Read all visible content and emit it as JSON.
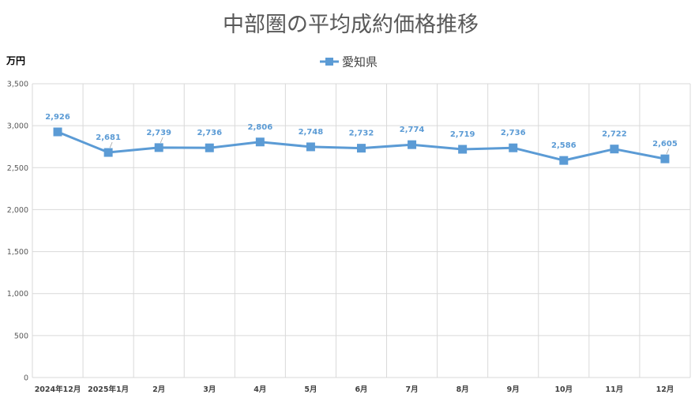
{
  "chart_data": {
    "type": "line",
    "title": "中部圏の平均成約価格推移",
    "ylabel": "万円",
    "xlabel": "",
    "ylim": [
      0,
      3500
    ],
    "yticks": [
      0,
      500,
      1000,
      1500,
      2000,
      2500,
      3000,
      3500
    ],
    "ytick_labels": [
      "0",
      "500",
      "1,000",
      "1,500",
      "2,000",
      "2,500",
      "3,000",
      "3,500"
    ],
    "categories": [
      "2024年12月",
      "2025年1月",
      "2月",
      "3月",
      "4月",
      "5月",
      "6月",
      "7月",
      "8月",
      "9月",
      "10月",
      "11月",
      "12月"
    ],
    "series": [
      {
        "name": "愛知県",
        "color": "#5b9bd5",
        "marker": "square",
        "values": [
          2926,
          2681,
          2739,
          2736,
          2806,
          2748,
          2732,
          2774,
          2719,
          2736,
          2586,
          2722,
          2605
        ],
        "data_labels": [
          "2,926",
          "2,681",
          "2,739",
          "2,736",
          "2,806",
          "2,748",
          "2,732",
          "2,774",
          "2,719",
          "2,736",
          "2,586",
          "2,722",
          "2,605"
        ]
      }
    ],
    "legend": "top-center",
    "grid": true
  },
  "colors": {
    "series": "#5b9bd5",
    "grid": "#d9d9d9",
    "title": "#595959"
  }
}
